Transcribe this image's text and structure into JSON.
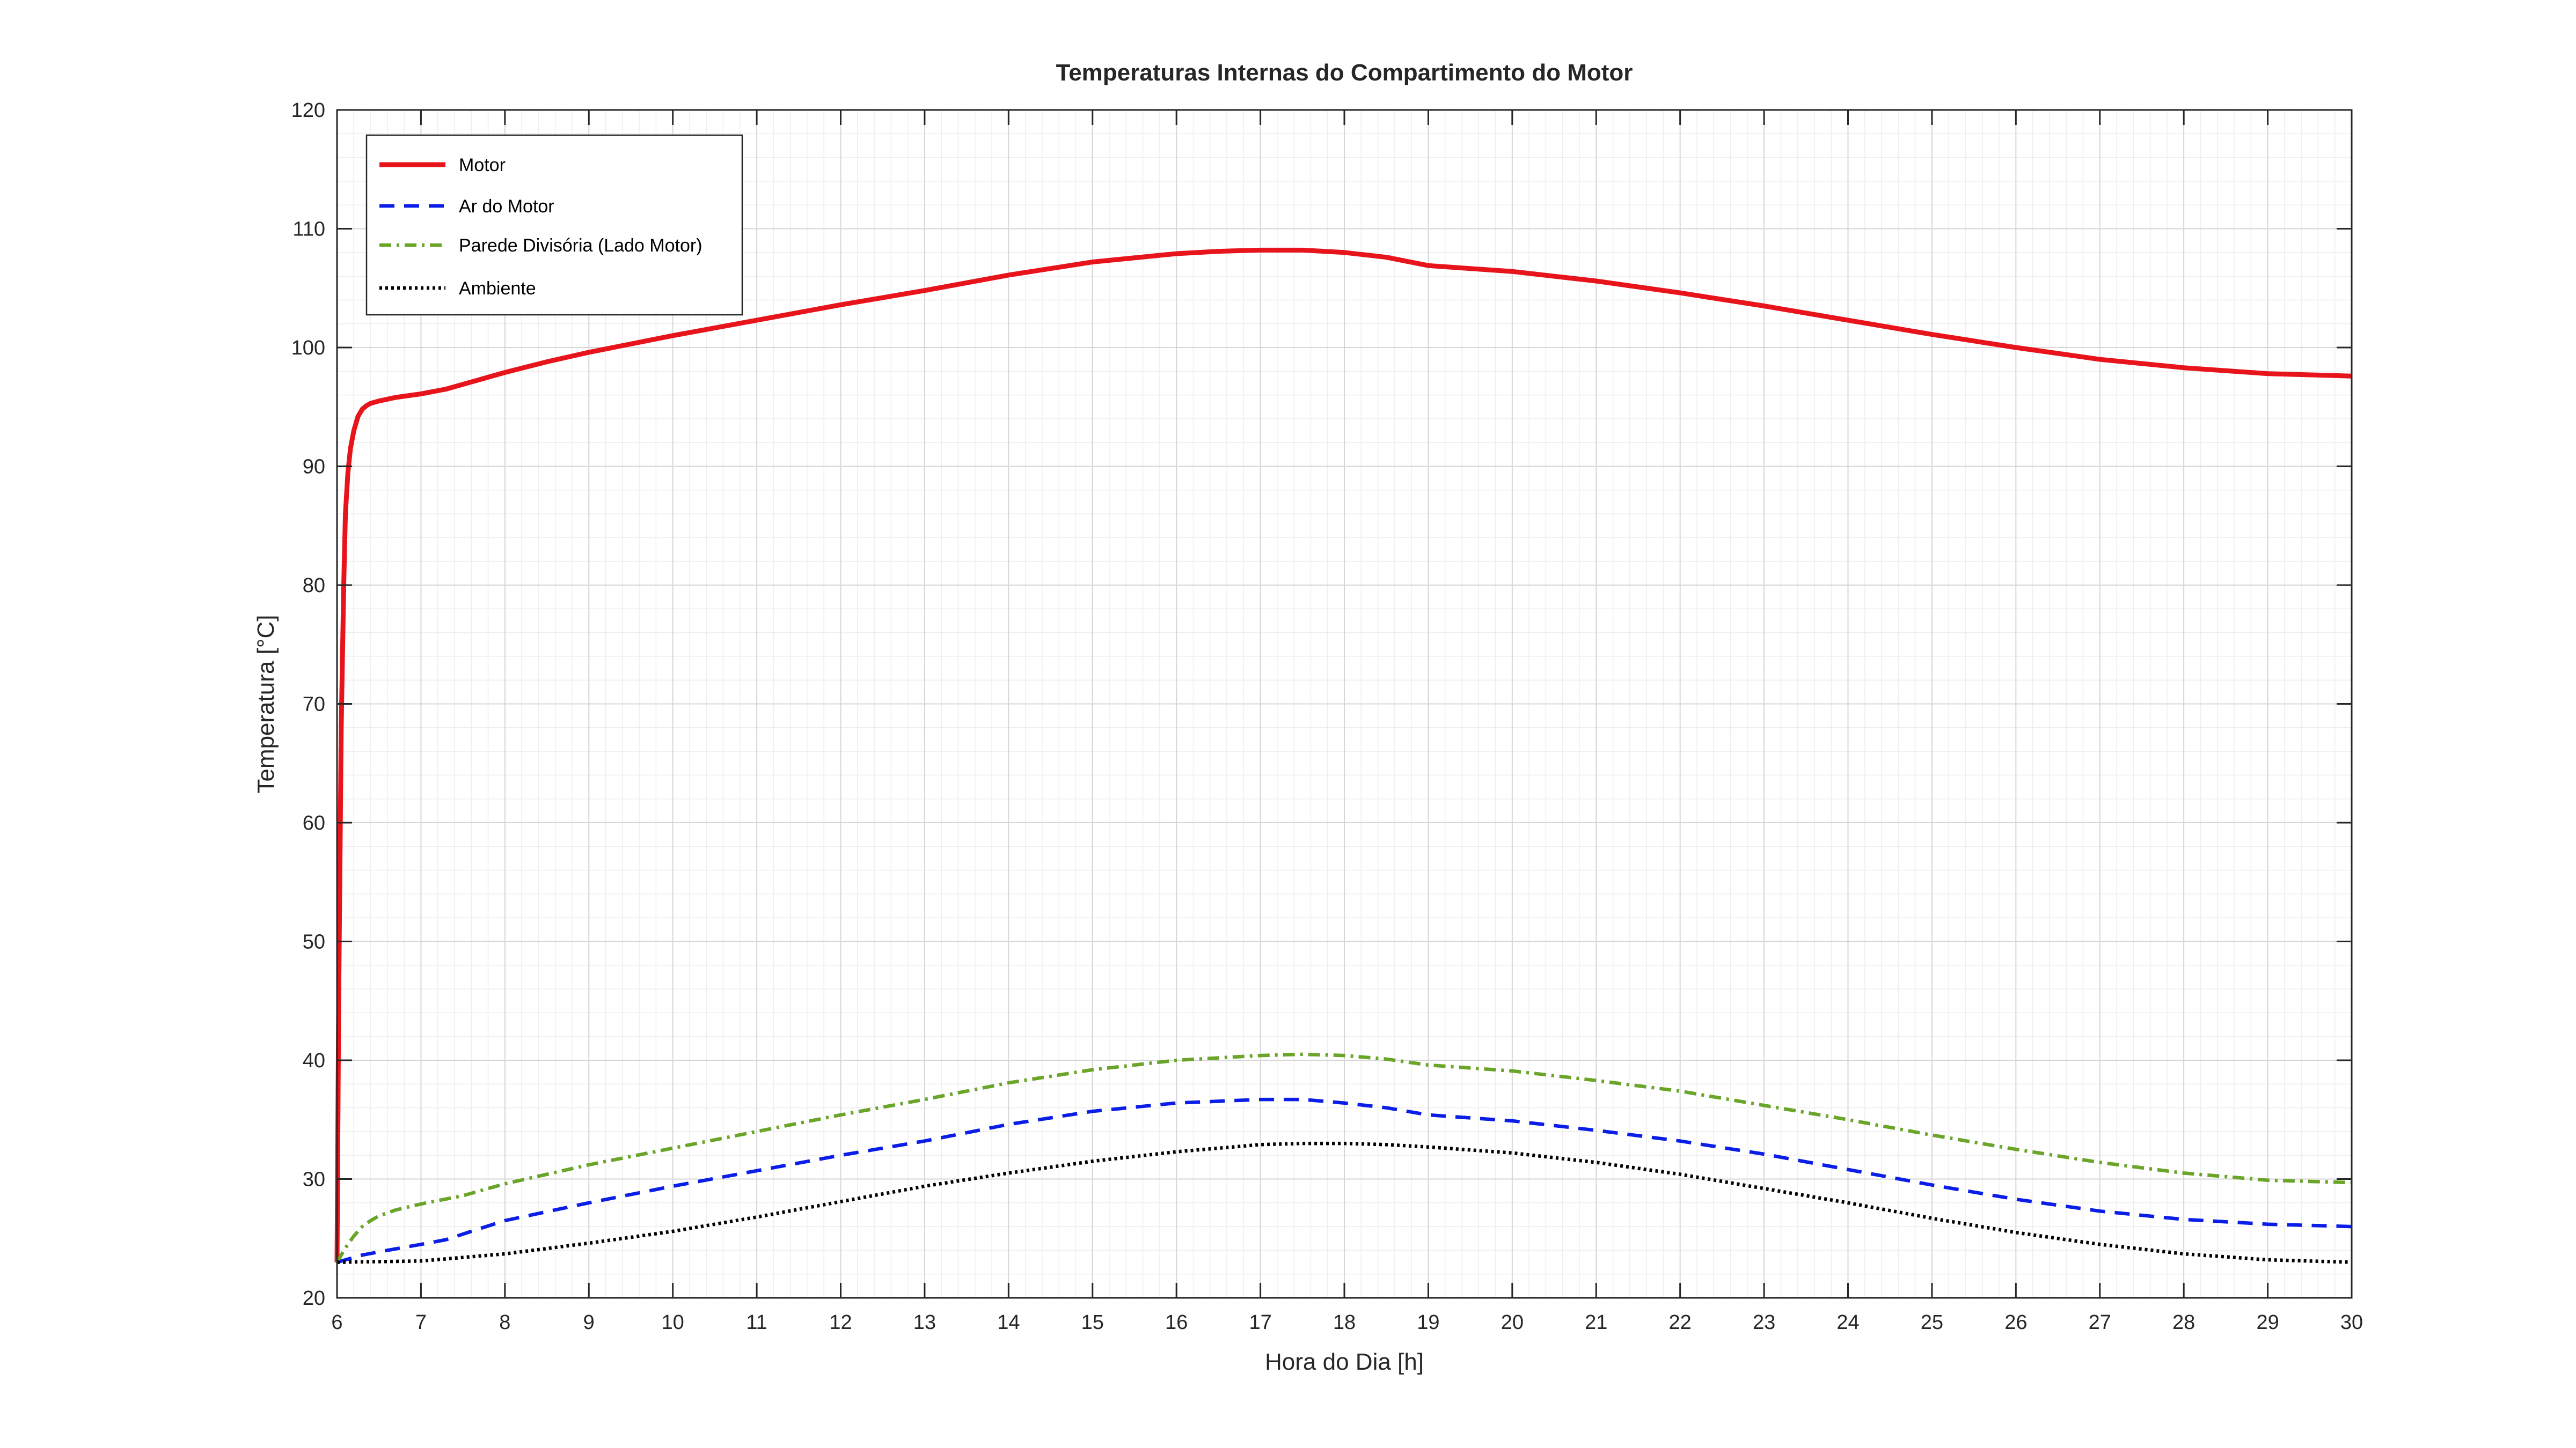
{
  "chart_data": {
    "type": "line",
    "title": "Temperaturas Internas do Compartimento do Motor",
    "xlabel": "Hora do Dia [h]",
    "ylabel": "Temperatura [°C]",
    "xlim": [
      6,
      30
    ],
    "ylim": [
      20,
      120
    ],
    "xticks": [
      6,
      7,
      8,
      9,
      10,
      11,
      12,
      13,
      14,
      15,
      16,
      17,
      18,
      19,
      20,
      21,
      22,
      23,
      24,
      25,
      26,
      27,
      28,
      29,
      30
    ],
    "yticks": [
      20,
      30,
      40,
      50,
      60,
      70,
      80,
      90,
      100,
      110,
      120
    ],
    "grid": true,
    "minor_grid": true,
    "legend_position": "top-left",
    "series": [
      {
        "name": "Motor",
        "color": "#e8141c",
        "style": "solid",
        "x": [
          6,
          6.02,
          6.05,
          6.08,
          6.1,
          6.13,
          6.16,
          6.2,
          6.25,
          6.3,
          6.35,
          6.4,
          6.5,
          6.7,
          7,
          7.3,
          7.6,
          8,
          8.5,
          9,
          10,
          11,
          12,
          13,
          14,
          15,
          16,
          16.5,
          17,
          17.5,
          18,
          18.5,
          19,
          20,
          21,
          22,
          23,
          24,
          25,
          26,
          27,
          28,
          29,
          30
        ],
        "y": [
          23,
          45,
          68,
          80,
          86,
          89.5,
          91.5,
          93,
          94.2,
          94.8,
          95.1,
          95.3,
          95.5,
          95.8,
          96.1,
          96.5,
          97.1,
          97.9,
          98.8,
          99.6,
          101,
          102.3,
          103.6,
          104.8,
          106.1,
          107.2,
          107.9,
          108.1,
          108.2,
          108.2,
          108,
          107.6,
          106.9,
          106.4,
          105.6,
          104.6,
          103.5,
          102.3,
          101.1,
          100,
          99,
          98.3,
          97.8,
          97.6
        ]
      },
      {
        "name": "Ar do Motor",
        "color": "#0a1ee8",
        "style": "dashed",
        "x": [
          6,
          6.3,
          6.6,
          7,
          7.3,
          7.6,
          8,
          9,
          10,
          11,
          12,
          13,
          14,
          15,
          16,
          17,
          17.5,
          18,
          18.5,
          19,
          20,
          21,
          22,
          23,
          24,
          25,
          26,
          27,
          28,
          29,
          30
        ],
        "y": [
          23,
          23.6,
          24,
          24.5,
          24.9,
          25.6,
          26.5,
          28,
          29.4,
          30.7,
          32,
          33.2,
          34.6,
          35.7,
          36.4,
          36.7,
          36.7,
          36.4,
          36,
          35.4,
          34.9,
          34.1,
          33.2,
          32.1,
          30.8,
          29.5,
          28.3,
          27.3,
          26.6,
          26.2,
          26
        ]
      },
      {
        "name": "Parede Divisória (Lado Motor)",
        "color": "#6aa52a",
        "style": "dashdot",
        "x": [
          6,
          6.1,
          6.2,
          6.3,
          6.4,
          6.5,
          6.7,
          7,
          7.5,
          8,
          9,
          10,
          11,
          12,
          13,
          14,
          15,
          16,
          17,
          17.5,
          18,
          18.5,
          19,
          20,
          21,
          22,
          23,
          24,
          25,
          26,
          27,
          28,
          29,
          30
        ],
        "y": [
          23,
          24.2,
          25.2,
          26,
          26.5,
          26.9,
          27.4,
          27.9,
          28.6,
          29.6,
          31.2,
          32.6,
          34,
          35.4,
          36.7,
          38.1,
          39.2,
          40,
          40.4,
          40.5,
          40.4,
          40.1,
          39.6,
          39.1,
          38.3,
          37.4,
          36.2,
          35,
          33.7,
          32.5,
          31.4,
          30.5,
          29.9,
          29.7
        ]
      },
      {
        "name": "Ambiente",
        "color": "#000000",
        "style": "dotted",
        "x": [
          6,
          7,
          8,
          9,
          10,
          11,
          12,
          13,
          14,
          15,
          16,
          17,
          17.5,
          18,
          18.5,
          19,
          20,
          21,
          22,
          23,
          24,
          25,
          26,
          27,
          28,
          29,
          30
        ],
        "y": [
          23,
          23.1,
          23.7,
          24.6,
          25.6,
          26.8,
          28.1,
          29.4,
          30.5,
          31.5,
          32.3,
          32.9,
          33,
          33,
          32.9,
          32.7,
          32.2,
          31.4,
          30.4,
          29.2,
          28,
          26.7,
          25.5,
          24.5,
          23.7,
          23.2,
          23
        ]
      }
    ]
  }
}
